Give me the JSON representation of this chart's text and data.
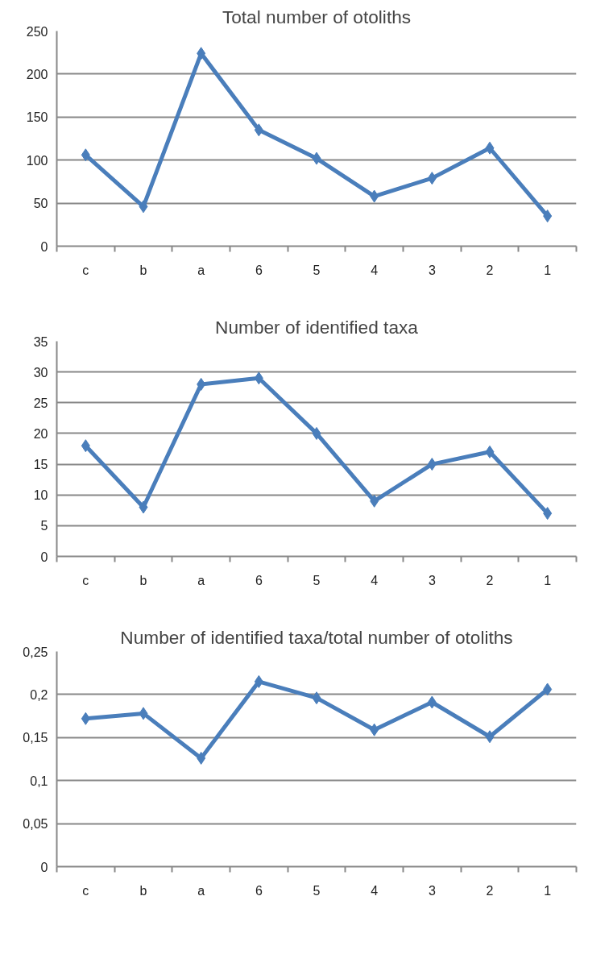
{
  "chart_data": [
    {
      "type": "line",
      "title": "Total number of otoliths",
      "categories": [
        "c",
        "b",
        "a",
        "6",
        "5",
        "4",
        "3",
        "2",
        "1"
      ],
      "values": [
        106,
        46,
        224,
        135,
        102,
        58,
        79,
        114,
        35
      ],
      "color": "#4a7ebb",
      "ylim": [
        0,
        250
      ],
      "yticks": [
        0,
        50,
        100,
        150,
        200,
        250
      ],
      "grid": "y",
      "marker": "diamond"
    },
    {
      "type": "line",
      "title": "Number of identified taxa",
      "categories": [
        "c",
        "b",
        "a",
        "6",
        "5",
        "4",
        "3",
        "2",
        "1"
      ],
      "values": [
        18,
        8,
        28,
        29,
        20,
        9,
        15,
        17,
        7
      ],
      "color": "#4a7ebb",
      "ylim": [
        0,
        35
      ],
      "yticks": [
        0,
        5,
        10,
        15,
        20,
        25,
        30,
        35
      ],
      "grid": "y",
      "marker": "diamond"
    },
    {
      "type": "line",
      "title": "Number of identified taxa/total number of otoliths",
      "categories": [
        "c",
        "b",
        "a",
        "6",
        "5",
        "4",
        "3",
        "2",
        "1"
      ],
      "values": [
        0.172,
        0.178,
        0.126,
        0.215,
        0.196,
        0.159,
        0.191,
        0.151,
        0.206
      ],
      "color": "#4a7ebb",
      "ylim": [
        0,
        0.25
      ],
      "yticks": [
        0,
        {
          "value": 0.05,
          "label": "0,05"
        },
        {
          "value": 0.1,
          "label": "0,1"
        },
        {
          "value": 0.15,
          "label": "0,15"
        },
        {
          "value": 0.2,
          "label": "0,2"
        },
        {
          "value": 0.25,
          "label": "0,25"
        }
      ],
      "grid": "y",
      "marker": "diamond"
    }
  ]
}
